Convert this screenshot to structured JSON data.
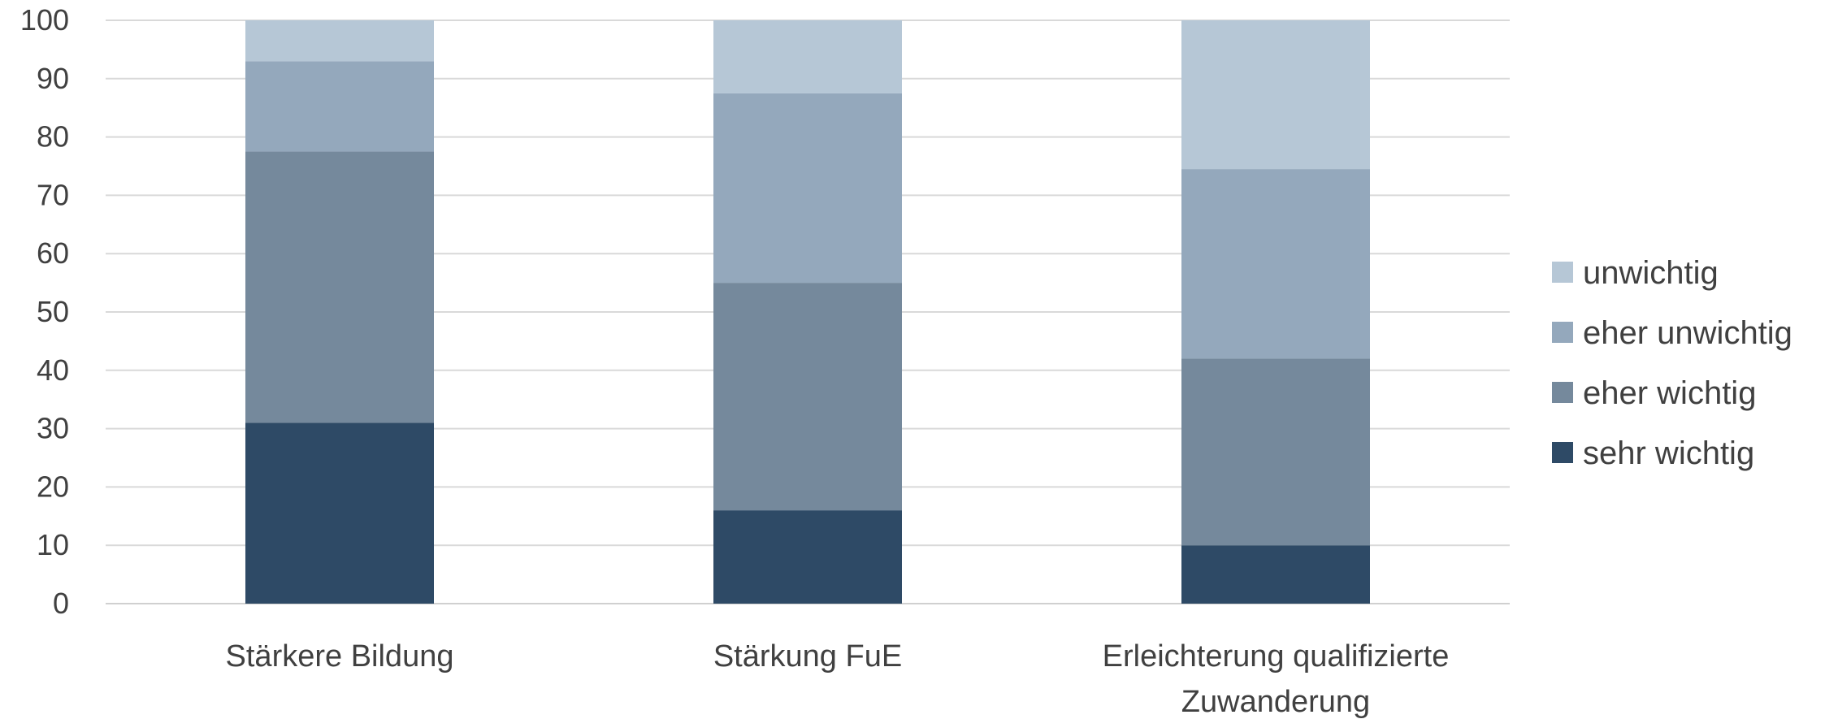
{
  "chart_data": {
    "type": "bar",
    "stacked": true,
    "categories": [
      "Stärkere Bildung",
      "Stärkung FuE",
      "Erleichterung qualifizierte Zuwanderung"
    ],
    "category_lines": [
      [
        "Stärkere Bildung"
      ],
      [
        "Stärkung FuE"
      ],
      [
        "Erleichterung qualifizierte",
        "Zuwanderung"
      ]
    ],
    "series": [
      {
        "name": "sehr wichtig",
        "values": [
          31,
          16,
          10
        ],
        "color": "#2e4a66"
      },
      {
        "name": "eher wichtig",
        "values": [
          46.5,
          39,
          32
        ],
        "color": "#75899c"
      },
      {
        "name": "eher unwichtig",
        "values": [
          15.5,
          32.5,
          32.5
        ],
        "color": "#94a8bc"
      },
      {
        "name": "unwichtig",
        "values": [
          7,
          12.5,
          25.5
        ],
        "color": "#b6c7d6"
      }
    ],
    "y_ticks": [
      "0",
      "10",
      "20",
      "30",
      "40",
      "50",
      "60",
      "70",
      "80",
      "90",
      "100"
    ],
    "ylim": [
      0,
      100
    ],
    "grid": true,
    "legend_position": "right",
    "legend_order": [
      "unwichtig",
      "eher unwichtig",
      "eher wichtig",
      "sehr wichtig"
    ]
  }
}
